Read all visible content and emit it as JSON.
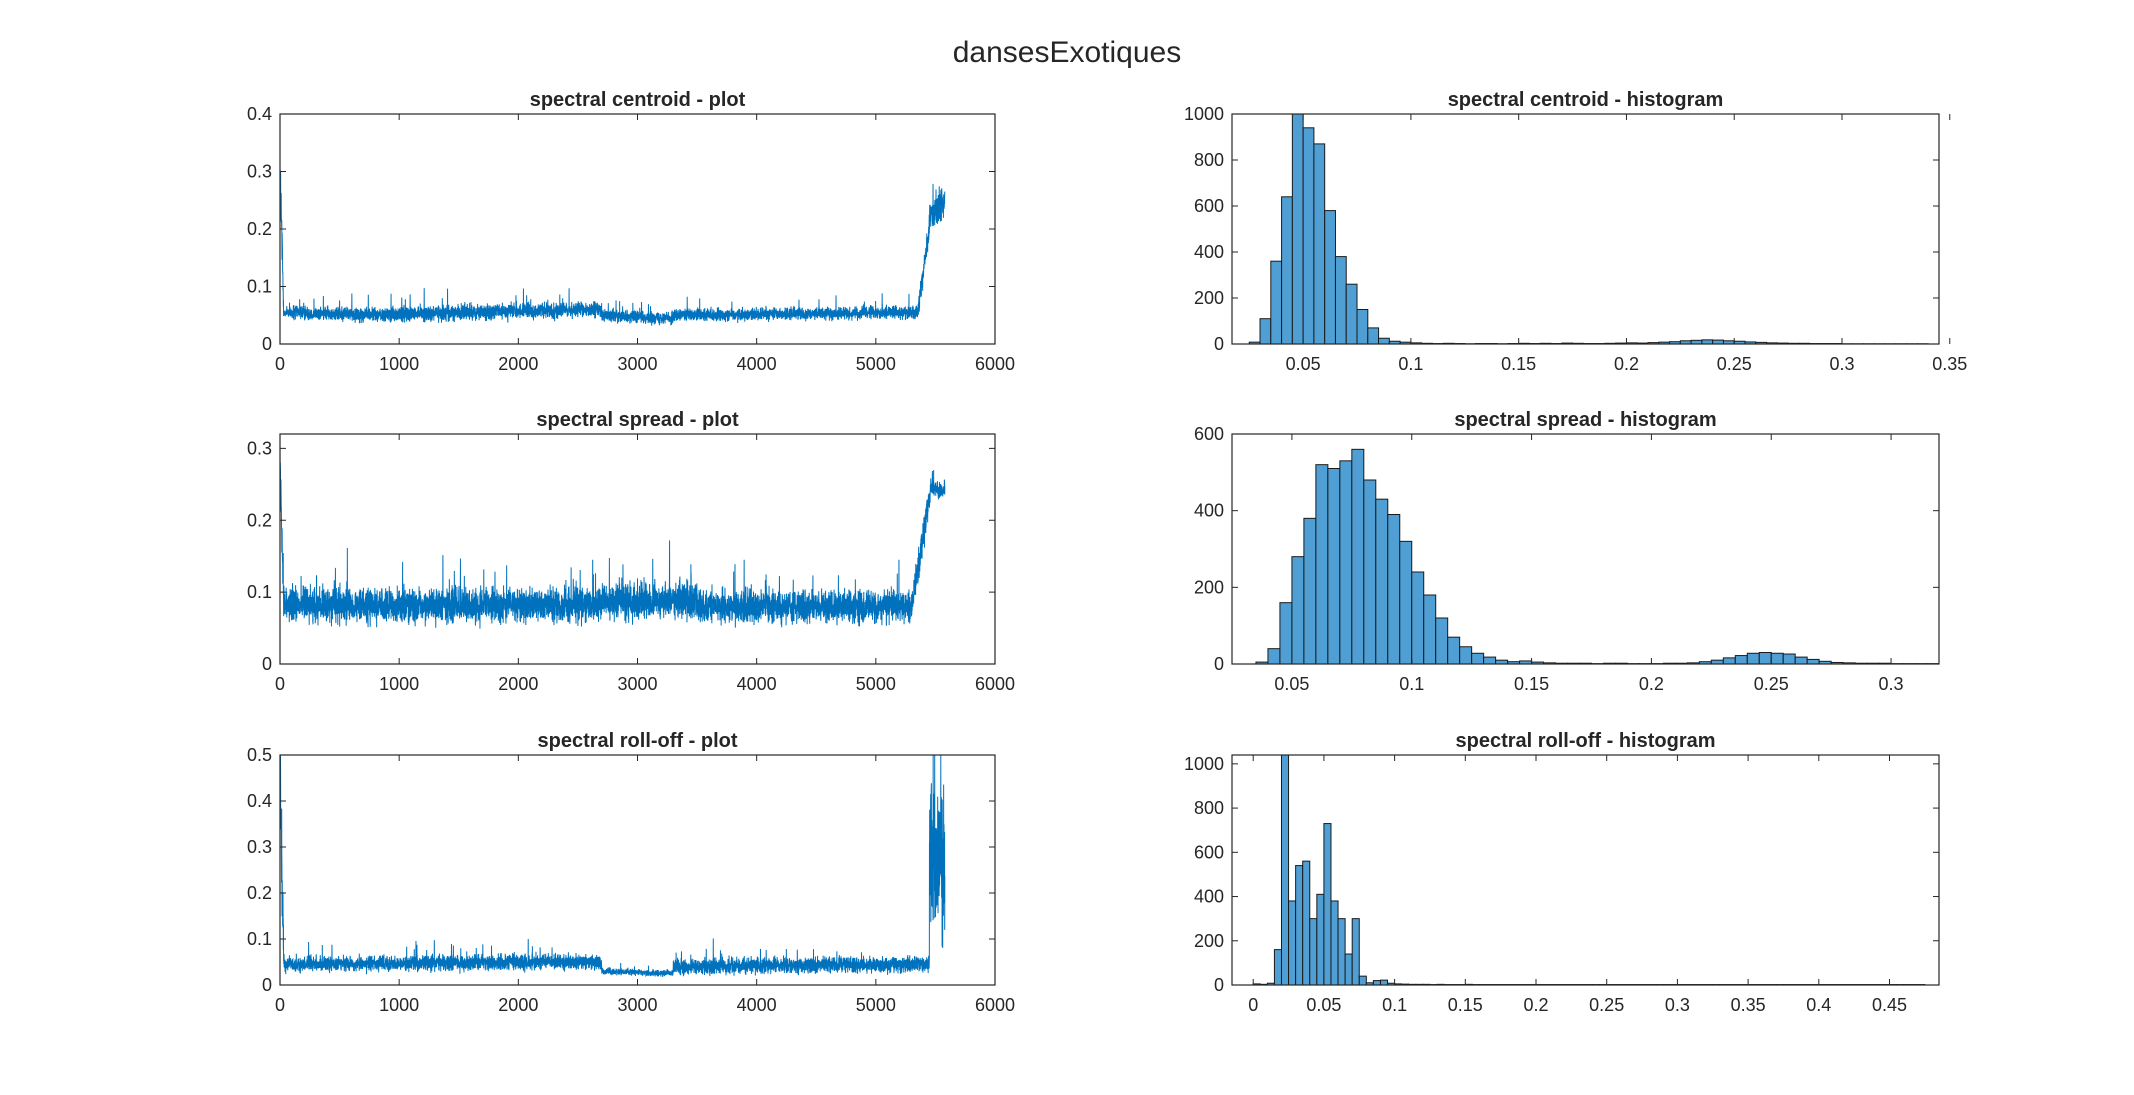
{
  "figure": {
    "title": "dansesExotiques"
  },
  "colors": {
    "line": "#0072BD",
    "bar_fill": "#4F9FD4",
    "bar_edge": "#1a1a1a",
    "axis": "#262626"
  },
  "chart_data": [
    {
      "type": "line",
      "title": "spectral centroid - plot",
      "xlabel": "",
      "ylabel": "",
      "xlim": [
        0,
        6000
      ],
      "ylim": [
        0,
        0.4
      ],
      "xticks": [
        "0",
        "1000",
        "2000",
        "3000",
        "4000",
        "5000",
        "6000"
      ],
      "yticks": [
        "0",
        "0.1",
        "0.2",
        "0.3",
        "0.4"
      ],
      "series": [
        {
          "n_points": 5580,
          "segments": [
            {
              "x0": 0,
              "x1": 30,
              "start": 0.31,
              "end": 0.06,
              "mean": 0.2,
              "amp": 0.08
            },
            {
              "x0": 30,
              "x1": 1000,
              "start": 0.055,
              "end": 0.05,
              "mean": 0.052,
              "amp": 0.018
            },
            {
              "x0": 1000,
              "x1": 2700,
              "start": 0.052,
              "end": 0.06,
              "mean": 0.056,
              "amp": 0.02
            },
            {
              "x0": 2700,
              "x1": 3300,
              "start": 0.05,
              "end": 0.045,
              "mean": 0.045,
              "amp": 0.016
            },
            {
              "x0": 3300,
              "x1": 5350,
              "start": 0.05,
              "end": 0.055,
              "mean": 0.054,
              "amp": 0.016
            },
            {
              "x0": 5350,
              "x1": 5450,
              "start": 0.055,
              "end": 0.2,
              "mean": 0.12,
              "amp": 0.03
            },
            {
              "x0": 5450,
              "x1": 5580,
              "start": 0.22,
              "end": 0.25,
              "mean": 0.25,
              "amp": 0.04
            }
          ]
        }
      ]
    },
    {
      "type": "bar",
      "title": "spectral centroid - histogram",
      "xlabel": "",
      "ylabel": "",
      "xlim": [
        0.017,
        0.345
      ],
      "ylim": [
        0,
        1000
      ],
      "xticks": [
        "0.05",
        "0.1",
        "0.15",
        "0.2",
        "0.25",
        "0.3",
        "0.35"
      ],
      "xtick_values": [
        0.05,
        0.1,
        0.15,
        0.2,
        0.25,
        0.3,
        0.35
      ],
      "yticks": [
        "0",
        "200",
        "400",
        "600",
        "800",
        "1000"
      ],
      "bin_start": 0.025,
      "bin_width": 0.005,
      "values": [
        8,
        110,
        360,
        640,
        1000,
        940,
        870,
        580,
        380,
        260,
        150,
        70,
        25,
        12,
        8,
        5,
        3,
        2,
        3,
        2,
        1,
        2,
        2,
        1,
        2,
        3,
        2,
        3,
        2,
        4,
        3,
        2,
        2,
        3,
        4,
        5,
        4,
        6,
        8,
        10,
        14,
        16,
        18,
        17,
        14,
        12,
        9,
        7,
        5,
        4,
        3,
        3,
        2,
        2,
        2,
        1,
        1,
        1,
        1,
        1,
        1,
        1,
        1
      ]
    },
    {
      "type": "line",
      "title": "spectral spread - plot",
      "xlabel": "",
      "ylabel": "",
      "xlim": [
        0,
        6000
      ],
      "ylim": [
        0,
        0.32
      ],
      "xticks": [
        "0",
        "1000",
        "2000",
        "3000",
        "4000",
        "5000",
        "6000"
      ],
      "yticks": [
        "0",
        "0.1",
        "0.2",
        "0.3"
      ],
      "ytick_values": [
        0,
        0.1,
        0.2,
        0.3
      ],
      "series": [
        {
          "n_points": 5580,
          "segments": [
            {
              "x0": 0,
              "x1": 30,
              "start": 0.28,
              "end": 0.09,
              "mean": 0.2,
              "amp": 0.06
            },
            {
              "x0": 30,
              "x1": 2700,
              "start": 0.082,
              "end": 0.082,
              "mean": 0.082,
              "amp": 0.035
            },
            {
              "x0": 2700,
              "x1": 3500,
              "start": 0.088,
              "end": 0.088,
              "mean": 0.088,
              "amp": 0.038
            },
            {
              "x0": 3500,
              "x1": 5300,
              "start": 0.08,
              "end": 0.08,
              "mean": 0.08,
              "amp": 0.032
            },
            {
              "x0": 5300,
              "x1": 5460,
              "start": 0.08,
              "end": 0.24,
              "mean": 0.15,
              "amp": 0.03
            },
            {
              "x0": 5460,
              "x1": 5580,
              "start": 0.245,
              "end": 0.24,
              "mean": 0.245,
              "amp": 0.015
            }
          ]
        }
      ]
    },
    {
      "type": "bar",
      "title": "spectral spread - histogram",
      "xlabel": "",
      "ylabel": "",
      "xlim": [
        0.025,
        0.32
      ],
      "ylim": [
        0,
        600
      ],
      "xticks": [
        "0.05",
        "0.1",
        "0.15",
        "0.2",
        "0.25",
        "0.3"
      ],
      "xtick_values": [
        0.05,
        0.1,
        0.15,
        0.2,
        0.25,
        0.3
      ],
      "yticks": [
        "0",
        "200",
        "400",
        "600"
      ],
      "bin_start": 0.035,
      "bin_width": 0.005,
      "values": [
        5,
        40,
        160,
        280,
        380,
        520,
        510,
        530,
        560,
        480,
        430,
        390,
        320,
        240,
        180,
        120,
        70,
        45,
        28,
        18,
        10,
        6,
        8,
        5,
        3,
        2,
        2,
        2,
        1,
        2,
        2,
        1,
        1,
        1,
        2,
        2,
        3,
        6,
        10,
        16,
        22,
        28,
        30,
        28,
        26,
        18,
        12,
        7,
        4,
        3,
        2,
        2,
        2,
        1,
        1,
        1,
        1
      ]
    },
    {
      "type": "line",
      "title": "spectral roll-off - plot",
      "xlabel": "",
      "ylabel": "",
      "xlim": [
        0,
        6000
      ],
      "ylim": [
        0,
        0.5
      ],
      "xticks": [
        "0",
        "1000",
        "2000",
        "3000",
        "4000",
        "5000",
        "6000"
      ],
      "yticks": [
        "0",
        "0.1",
        "0.2",
        "0.3",
        "0.4",
        "0.5"
      ],
      "series": [
        {
          "n_points": 5580,
          "segments": [
            {
              "x0": 0,
              "x1": 30,
              "start": 0.46,
              "end": 0.05,
              "mean": 0.3,
              "amp": 0.15
            },
            {
              "x0": 30,
              "x1": 2700,
              "start": 0.045,
              "end": 0.05,
              "mean": 0.045,
              "amp": 0.025
            },
            {
              "x0": 2700,
              "x1": 3300,
              "start": 0.03,
              "end": 0.025,
              "mean": 0.025,
              "amp": 0.01
            },
            {
              "x0": 3300,
              "x1": 5450,
              "start": 0.04,
              "end": 0.045,
              "mean": 0.045,
              "amp": 0.025
            },
            {
              "x0": 5450,
              "x1": 5580,
              "start": 0.3,
              "end": 0.25,
              "mean": 0.25,
              "amp": 0.22
            }
          ]
        }
      ]
    },
    {
      "type": "bar",
      "title": "spectral roll-off - histogram",
      "xlabel": "",
      "ylabel": "",
      "xlim": [
        -0.015,
        0.485
      ],
      "ylim": [
        0,
        1040
      ],
      "xticks": [
        "0",
        "0.05",
        "0.1",
        "0.15",
        "0.2",
        "0.25",
        "0.3",
        "0.35",
        "0.4",
        "0.45"
      ],
      "xtick_values": [
        0,
        0.05,
        0.1,
        0.15,
        0.2,
        0.25,
        0.3,
        0.35,
        0.4,
        0.45
      ],
      "yticks": [
        "0",
        "200",
        "400",
        "600",
        "800",
        "1000"
      ],
      "ytick_values": [
        0,
        200,
        400,
        600,
        800,
        1000
      ],
      "bin_start": 0.0,
      "bin_width": 0.005,
      "values": [
        5,
        3,
        8,
        160,
        1040,
        380,
        540,
        560,
        300,
        410,
        730,
        380,
        300,
        140,
        300,
        40,
        10,
        20,
        22,
        8,
        5,
        4,
        3,
        3,
        3,
        2,
        3,
        2,
        2,
        2,
        3,
        2,
        2,
        2,
        2,
        2,
        2,
        2,
        2,
        2,
        2,
        2,
        2,
        2,
        2,
        2,
        2,
        2,
        2,
        2,
        2,
        2,
        2,
        2,
        2,
        2,
        2,
        2,
        2,
        2,
        2,
        2,
        2,
        2,
        2,
        2,
        2,
        2,
        2,
        2,
        2,
        2,
        2,
        2,
        2,
        2,
        2,
        2,
        2,
        2,
        2,
        2,
        2,
        2,
        2,
        2,
        2,
        2,
        2,
        2,
        2,
        2,
        2,
        2,
        2
      ]
    }
  ]
}
